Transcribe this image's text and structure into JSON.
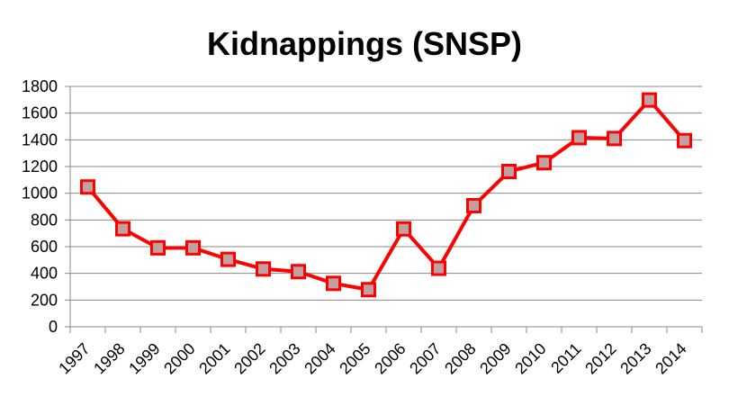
{
  "chart_data": {
    "type": "line",
    "title": "Kidnappings (SNSP)",
    "xlabel": "",
    "ylabel": "",
    "categories": [
      "1997",
      "1998",
      "1999",
      "2000",
      "2001",
      "2002",
      "2003",
      "2004",
      "2005",
      "2006",
      "2007",
      "2008",
      "2009",
      "2010",
      "2011",
      "2012",
      "2013",
      "2014"
    ],
    "series": [
      {
        "values": [
          1047,
          734,
          591,
          591,
          505,
          433,
          413,
          325,
          278,
          733,
          438,
          907,
          1163,
          1229,
          1416,
          1410,
          1698,
          1394
        ],
        "color": "#ff0000",
        "marker_fill": "#c0a0a0",
        "marker": "square"
      }
    ],
    "ylim": [
      0,
      1800
    ],
    "yticks": [
      0,
      200,
      400,
      600,
      800,
      1000,
      1200,
      1400,
      1600,
      1800
    ],
    "grid": "horizontal",
    "legend": "none"
  }
}
